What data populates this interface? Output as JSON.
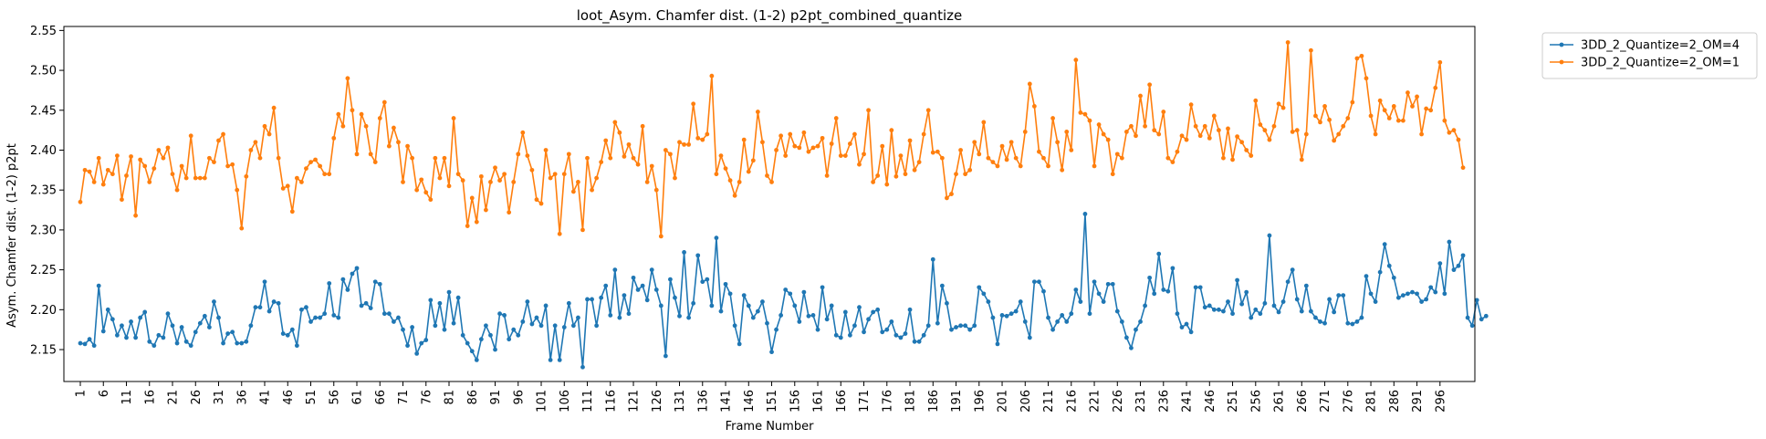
{
  "chart_data": {
    "type": "line",
    "title": "loot_Asym. Chamfer dist. (1-2) p2pt_combined_quantize",
    "xlabel": "Frame Number",
    "ylabel": "Asym. Chamfer dist. (1-2) p2pt",
    "xlim": [
      1,
      300
    ],
    "ylim": [
      2.11,
      2.555
    ],
    "x_ticks": [
      1,
      6,
      11,
      16,
      21,
      26,
      31,
      36,
      41,
      46,
      51,
      56,
      61,
      66,
      71,
      76,
      81,
      86,
      91,
      96,
      101,
      106,
      111,
      116,
      121,
      126,
      131,
      136,
      141,
      146,
      151,
      156,
      161,
      166,
      171,
      176,
      181,
      186,
      191,
      196,
      201,
      206,
      211,
      216,
      221,
      226,
      231,
      236,
      241,
      246,
      251,
      256,
      261,
      266,
      271,
      276,
      281,
      286,
      291,
      296
    ],
    "y_ticks": [
      2.15,
      2.2,
      2.25,
      2.3,
      2.35,
      2.4,
      2.45,
      2.5,
      2.55
    ],
    "grid": false,
    "legend_position": "outside-top-right",
    "series": [
      {
        "name": "3DD_2_Quantize=2_OM=4",
        "color": "#1f77b4",
        "values": [
          2.158,
          2.157,
          2.163,
          2.155,
          2.23,
          2.173,
          2.2,
          2.188,
          2.168,
          2.18,
          2.165,
          2.185,
          2.165,
          2.19,
          2.197,
          2.16,
          2.155,
          2.168,
          2.165,
          2.195,
          2.18,
          2.158,
          2.178,
          2.16,
          2.155,
          2.172,
          2.183,
          2.192,
          2.178,
          2.21,
          2.19,
          2.158,
          2.17,
          2.172,
          2.158,
          2.158,
          2.16,
          2.18,
          2.203,
          2.203,
          2.235,
          2.198,
          2.21,
          2.208,
          2.17,
          2.168,
          2.175,
          2.155,
          2.2,
          2.203,
          2.185,
          2.19,
          2.19,
          2.195,
          2.233,
          2.193,
          2.19,
          2.238,
          2.225,
          2.245,
          2.252,
          2.205,
          2.208,
          2.202,
          2.235,
          2.232,
          2.195,
          2.195,
          2.185,
          2.19,
          2.175,
          2.155,
          2.178,
          2.145,
          2.158,
          2.162,
          2.212,
          2.18,
          2.208,
          2.175,
          2.222,
          2.183,
          2.215,
          2.168,
          2.158,
          2.148,
          2.137,
          2.163,
          2.18,
          2.168,
          2.15,
          2.195,
          2.193,
          2.163,
          2.175,
          2.168,
          2.185,
          2.21,
          2.182,
          2.19,
          2.18,
          2.205,
          2.137,
          2.18,
          2.137,
          2.178,
          2.208,
          2.18,
          2.19,
          2.128,
          2.213,
          2.213,
          2.18,
          2.215,
          2.23,
          2.193,
          2.25,
          2.19,
          2.218,
          2.195,
          2.24,
          2.225,
          2.23,
          2.212,
          2.25,
          2.225,
          2.205,
          2.142,
          2.238,
          2.215,
          2.192,
          2.272,
          2.19,
          2.208,
          2.268,
          2.235,
          2.238,
          2.205,
          2.29,
          2.198,
          2.232,
          2.22,
          2.18,
          2.157,
          2.218,
          2.205,
          2.19,
          2.198,
          2.21,
          2.183,
          2.147,
          2.175,
          2.193,
          2.225,
          2.22,
          2.205,
          2.185,
          2.222,
          2.192,
          2.193,
          2.175,
          2.228,
          2.188,
          2.205,
          2.168,
          2.165,
          2.197,
          2.168,
          2.18,
          2.203,
          2.172,
          2.188,
          2.197,
          2.2,
          2.172,
          2.175,
          2.185,
          2.168,
          2.165,
          2.17,
          2.2,
          2.16,
          2.16,
          2.168,
          2.18,
          2.263,
          2.183,
          2.23,
          2.208,
          2.175,
          2.178,
          2.18,
          2.18,
          2.175,
          2.18,
          2.228,
          2.22,
          2.21,
          2.19,
          2.157,
          2.193,
          2.192,
          2.195,
          2.198,
          2.21,
          2.185,
          2.165,
          2.235,
          2.235,
          2.223,
          2.19,
          2.175,
          2.185,
          2.193,
          2.185,
          2.195,
          2.225,
          2.21,
          2.32,
          2.195,
          2.235,
          2.22,
          2.21,
          2.232,
          2.232,
          2.198,
          2.185,
          2.165,
          2.152,
          2.175,
          2.185,
          2.205,
          2.24,
          2.22,
          2.27,
          2.225,
          2.223,
          2.252,
          2.195,
          2.178,
          2.182,
          2.172,
          2.228,
          2.228,
          2.203,
          2.205,
          2.2,
          2.2,
          2.198,
          2.21,
          2.195,
          2.237,
          2.207,
          2.222,
          2.19,
          2.2,
          2.195,
          2.208,
          2.293,
          2.205,
          2.197,
          2.21,
          2.235,
          2.25,
          2.213,
          2.198,
          2.23,
          2.198,
          2.19,
          2.185,
          2.183,
          2.213,
          2.197,
          2.218,
          2.218,
          2.183,
          2.182,
          2.185,
          2.19,
          2.242,
          2.22,
          2.21,
          2.247,
          2.282,
          2.255,
          2.24,
          2.215,
          2.218,
          2.22,
          2.222,
          2.22,
          2.21,
          2.213,
          2.228,
          2.222,
          2.258,
          2.22,
          2.285,
          2.25,
          2.255,
          2.268,
          2.19,
          2.18,
          2.212,
          2.188,
          2.192
        ]
      },
      {
        "name": "3DD_2_Quantize=2_OM=1",
        "color": "#ff7f0e",
        "values": [
          2.335,
          2.375,
          2.373,
          2.36,
          2.39,
          2.357,
          2.375,
          2.37,
          2.393,
          2.338,
          2.368,
          2.392,
          2.318,
          2.388,
          2.38,
          2.36,
          2.377,
          2.4,
          2.39,
          2.403,
          2.37,
          2.35,
          2.38,
          2.365,
          2.418,
          2.365,
          2.365,
          2.365,
          2.39,
          2.385,
          2.412,
          2.42,
          2.38,
          2.382,
          2.35,
          2.302,
          2.367,
          2.4,
          2.41,
          2.39,
          2.43,
          2.42,
          2.453,
          2.39,
          2.352,
          2.355,
          2.323,
          2.365,
          2.36,
          2.377,
          2.385,
          2.388,
          2.38,
          2.37,
          2.37,
          2.415,
          2.445,
          2.43,
          2.49,
          2.45,
          2.395,
          2.445,
          2.43,
          2.395,
          2.385,
          2.44,
          2.46,
          2.405,
          2.428,
          2.41,
          2.36,
          2.405,
          2.39,
          2.35,
          2.363,
          2.347,
          2.338,
          2.39,
          2.365,
          2.39,
          2.355,
          2.44,
          2.37,
          2.362,
          2.305,
          2.34,
          2.31,
          2.367,
          2.325,
          2.36,
          2.378,
          2.362,
          2.37,
          2.322,
          2.36,
          2.395,
          2.422,
          2.393,
          2.375,
          2.338,
          2.333,
          2.4,
          2.365,
          2.37,
          2.295,
          2.37,
          2.395,
          2.348,
          2.36,
          2.3,
          2.39,
          2.35,
          2.365,
          2.385,
          2.412,
          2.39,
          2.435,
          2.422,
          2.392,
          2.407,
          2.39,
          2.382,
          2.43,
          2.36,
          2.38,
          2.35,
          2.292,
          2.4,
          2.395,
          2.365,
          2.41,
          2.407,
          2.407,
          2.458,
          2.415,
          2.413,
          2.42,
          2.493,
          2.37,
          2.393,
          2.377,
          2.362,
          2.343,
          2.36,
          2.413,
          2.373,
          2.387,
          2.448,
          2.41,
          2.368,
          2.36,
          2.4,
          2.418,
          2.393,
          2.42,
          2.405,
          2.403,
          2.422,
          2.398,
          2.403,
          2.405,
          2.415,
          2.368,
          2.408,
          2.44,
          2.393,
          2.393,
          2.408,
          2.42,
          2.382,
          2.395,
          2.45,
          2.36,
          2.368,
          2.405,
          2.357,
          2.425,
          2.367,
          2.393,
          2.37,
          2.412,
          2.375,
          2.385,
          2.42,
          2.45,
          2.397,
          2.398,
          2.39,
          2.34,
          2.345,
          2.37,
          2.4,
          2.37,
          2.375,
          2.41,
          2.395,
          2.435,
          2.39,
          2.385,
          2.38,
          2.405,
          2.388,
          2.41,
          2.39,
          2.38,
          2.423,
          2.483,
          2.455,
          2.398,
          2.39,
          2.38,
          2.44,
          2.41,
          2.375,
          2.423,
          2.4,
          2.513,
          2.447,
          2.445,
          2.437,
          2.38,
          2.432,
          2.42,
          2.413,
          2.37,
          2.395,
          2.39,
          2.423,
          2.43,
          2.418,
          2.468,
          2.43,
          2.482,
          2.425,
          2.42,
          2.448,
          2.39,
          2.385,
          2.398,
          2.418,
          2.413,
          2.457,
          2.43,
          2.418,
          2.43,
          2.415,
          2.443,
          2.425,
          2.39,
          2.427,
          2.388,
          2.417,
          2.41,
          2.4,
          2.393,
          2.462,
          2.432,
          2.425,
          2.413,
          2.43,
          2.458,
          2.453,
          2.535,
          2.423,
          2.425,
          2.388,
          2.42,
          2.525,
          2.443,
          2.435,
          2.455,
          2.438,
          2.412,
          2.42,
          2.43,
          2.44,
          2.46,
          2.515,
          2.518,
          2.49,
          2.443,
          2.42,
          2.462,
          2.45,
          2.44,
          2.455,
          2.437,
          2.437,
          2.472,
          2.455,
          2.467,
          2.42,
          2.452,
          2.45,
          2.478,
          2.51,
          2.437,
          2.422,
          2.425,
          2.413,
          2.378
        ]
      }
    ]
  }
}
